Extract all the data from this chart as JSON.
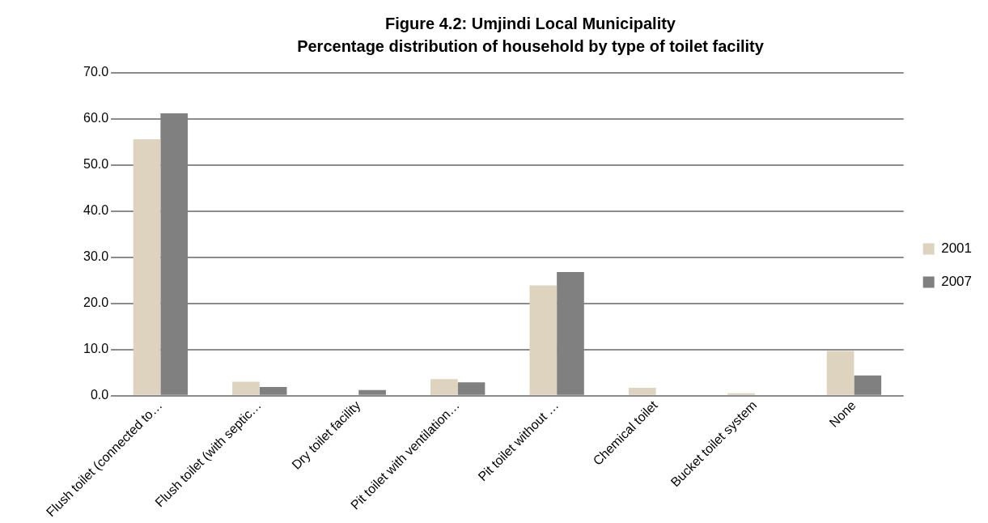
{
  "chart_data": {
    "type": "bar",
    "title": "Figure 4.2: Umjindi Local Municipality",
    "subtitle": "Percentage distribution of household by type of toilet facility",
    "categories": [
      "Flush toilet (connected to…",
      "Flush toilet (with septic…",
      "Dry toilet facility",
      "Pit toilet with ventilation…",
      "Pit toilet without …",
      "Chemical toilet",
      "Bucket toilet system",
      "None"
    ],
    "series": [
      {
        "name": "2001",
        "color": "#ddd3bf",
        "values": [
          55.6,
          3.0,
          0,
          3.6,
          23.9,
          1.7,
          0.5,
          9.7
        ]
      },
      {
        "name": "2007",
        "color": "#808080",
        "values": [
          61.2,
          1.9,
          1.2,
          2.9,
          26.8,
          0,
          0,
          4.4
        ]
      }
    ],
    "ylim": [
      0,
      70
    ],
    "yticks": [
      {
        "value": 0,
        "label": "0.0"
      },
      {
        "value": 10,
        "label": "10.0"
      },
      {
        "value": 20,
        "label": "20.0"
      },
      {
        "value": 30,
        "label": "30.0"
      },
      {
        "value": 40,
        "label": "40.0"
      },
      {
        "value": 50,
        "label": "50.0"
      },
      {
        "value": 60,
        "label": "60.0"
      },
      {
        "value": 70,
        "label": "70.0"
      }
    ],
    "grid": "y",
    "legend": "right"
  }
}
